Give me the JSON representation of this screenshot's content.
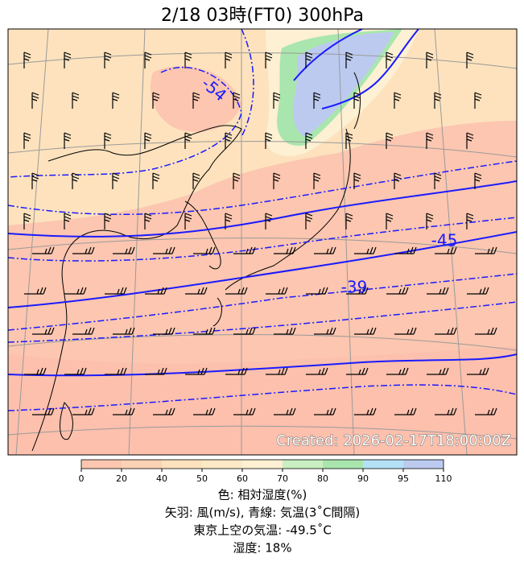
{
  "title": "2/18  03時(FT0)    300hPa",
  "contour_labels": [
    "-54",
    "-45",
    "-39"
  ],
  "created": "Created: 2026-02-17T18:00:00Z",
  "colorbar": {
    "ticks": [
      0,
      20,
      40,
      50,
      60,
      70,
      80,
      90,
      95,
      110
    ],
    "colors": [
      "#fcc6b0",
      "#fcd2b4",
      "#fde2bd",
      "#fde9c6",
      "#fdf0d3",
      "#c9efc3",
      "#a9e6ad",
      "#b4e1f6",
      "#bccaf0"
    ]
  },
  "caption": [
    "色: 相対湿度(%)",
    "矢羽: 風(m/s),  青線: 気温(3˚C間隔)",
    "東京上空の気温: -49.5˚C",
    "湿度: 18%"
  ]
}
